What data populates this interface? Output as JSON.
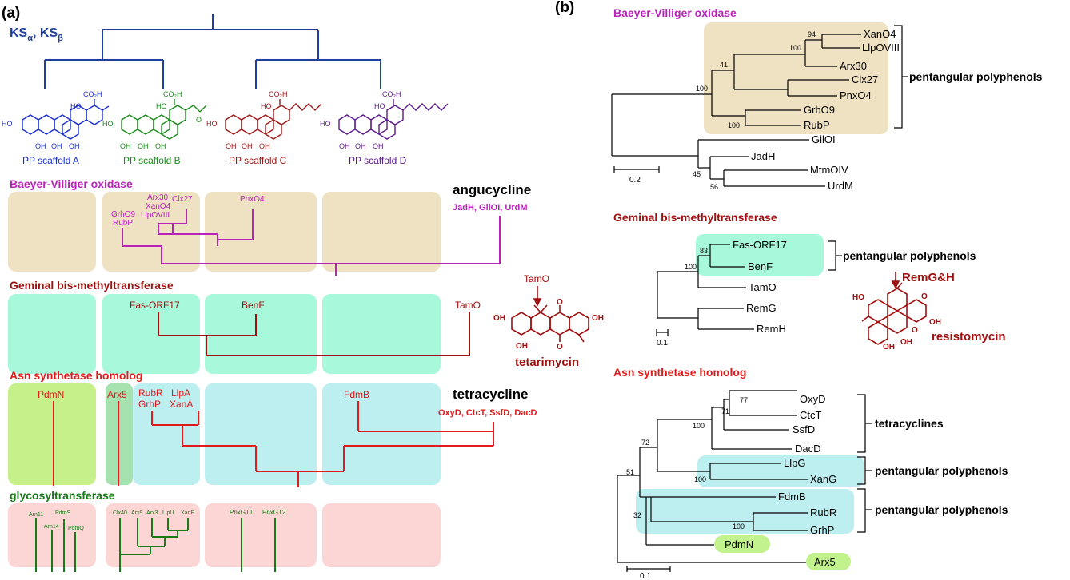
{
  "colors": {
    "ks_blue": "#1f3fa0",
    "scaffold_a": "#1a2fcf",
    "scaffold_b": "#1d8c1d",
    "scaffold_c": "#a01818",
    "scaffold_d": "#5c1a8c",
    "bvo_magenta": "#bb22bb",
    "gmt_darkred": "#a01010",
    "asn_red": "#e31a1a",
    "glyco_green": "#1a7a1a",
    "box_tan": "#efe2c2",
    "box_mint": "#a8f8dc",
    "box_cyan": "#bdeef0",
    "box_lime": "#c5f08a",
    "box_green": "#a5e2b0",
    "box_pink": "#fcd5d5",
    "pill_green": "#c2f28e"
  },
  "panel_a": {
    "label": "(a)",
    "ks": {
      "main": "KS",
      "sub1": "α",
      "sep": ", KS",
      "sub2": "β"
    },
    "scaffolds": [
      {
        "label": "PP scaffold A",
        "oh": [
          "HO",
          "HO",
          "OH",
          "OH",
          "OH"
        ],
        "acid": "CO₂H"
      },
      {
        "label": "PP scaffold B",
        "oh": [
          "HO",
          "HO",
          "OH",
          "OH",
          "OH"
        ],
        "acid": "CO₂H",
        "ketone": "O"
      },
      {
        "label": "PP scaffold C",
        "oh": [
          "HO",
          "HO",
          "OH",
          "OH",
          "OH"
        ],
        "acid": "CO₂H"
      },
      {
        "label": "PP scaffold D",
        "oh": [
          "HO",
          "HO",
          "OH",
          "OH",
          "OH"
        ],
        "acid": "CO₂H"
      }
    ],
    "bvo": {
      "title": "Baeyer-Villiger oxidase",
      "group1": [
        "GrhO9",
        "RubP"
      ],
      "group2": [
        "Arx30",
        "XanO4",
        "LlpOVIII"
      ],
      "clx": "Clx27",
      "pnx": "PnxO4",
      "side_title": "angucycline",
      "side_list": "JadH, GilOI, UrdM"
    },
    "gmt": {
      "title": "Geminal bis-methyltransferase",
      "fas": "Fas-ORF17",
      "benf": "BenF",
      "tamo": "TamO",
      "molecule_label": "TamO",
      "molecule_name": "tetarimycin",
      "oh": [
        "OH",
        "OH",
        "OH"
      ],
      "keto": [
        "O",
        "O"
      ]
    },
    "asn": {
      "title": "Asn synthetase homolog",
      "pdmn": "PdmN",
      "arx5": "Arx5",
      "rubr": "RubR",
      "grhp": "GrhP",
      "llpa": "LlpA",
      "xana": "XanA",
      "fdmb": "FdmB",
      "side_title": "tetracycline",
      "side_list": "OxyD, CtcT, SsfD, DacD"
    },
    "glyco": {
      "title": "glycosyltransferase",
      "box1": [
        "Arn11",
        "PdmS",
        "Arn14",
        "PdmQ"
      ],
      "box2": [
        "Clx40",
        "Arx9",
        "Arx3",
        "LlpU",
        "XanP"
      ],
      "box3": [
        "PnxGT1",
        "PnxGT2"
      ]
    }
  },
  "panel_b": {
    "label": "(b)",
    "bvo": {
      "title": "Baeyer-Villiger oxidase",
      "leaves": [
        "XanO4",
        "LlpOVIII",
        "Arx30",
        "Clx27",
        "PnxO4",
        "GrhO9",
        "RubP",
        "GilOI",
        "JadH",
        "MtmOIV",
        "UrdM"
      ],
      "bootstrap": [
        "94",
        "100",
        "41",
        "100",
        "100",
        "45",
        "56"
      ],
      "bracket": "pentangular polyphenols",
      "scale": "0.2"
    },
    "gmt": {
      "title": "Geminal bis-methyltransferase",
      "leaves": [
        "Fas-ORF17",
        "BenF",
        "TamO",
        "RemG",
        "RemH"
      ],
      "bootstrap": [
        "83",
        "100"
      ],
      "bracket": "pentangular polyphenols",
      "scale": "0.1",
      "molecule_label": "RemG&H",
      "molecule_name": "resistomycin",
      "oh": [
        "HO",
        "OH",
        "OH",
        "OH"
      ],
      "keto": [
        "O",
        "O"
      ]
    },
    "asn": {
      "title": "Asn synthetase homolog",
      "leaves": [
        "OxyD",
        "CtcT",
        "SsfD",
        "DacD",
        "LlpG",
        "XanG",
        "FdmB",
        "RubR",
        "GrhP",
        "PdmN",
        "Arx5"
      ],
      "bootstrap": [
        "77",
        "71",
        "100",
        "72",
        "100",
        "51",
        "32",
        "100"
      ],
      "brackets": [
        "tetracyclines",
        "pentangular polyphenols",
        "pentangular polyphenols"
      ],
      "scale": "0.1"
    }
  }
}
